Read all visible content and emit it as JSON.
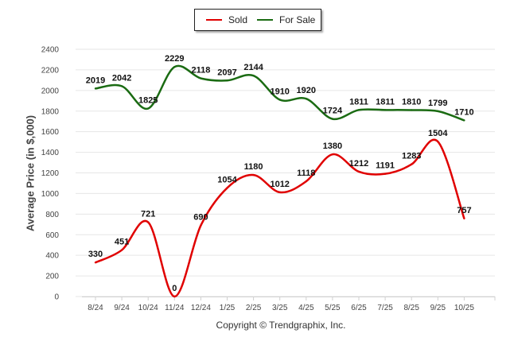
{
  "chart_data": {
    "type": "line",
    "title": "",
    "xlabel": "",
    "ylabel": "Average Price (in $,000)",
    "ylim": [
      0,
      2400
    ],
    "yticks": [
      0,
      200,
      400,
      600,
      800,
      1000,
      1200,
      1400,
      1600,
      1800,
      2000,
      2200,
      2400
    ],
    "grid": true,
    "legend_position": "top-center",
    "categories": [
      "8/24",
      "9/24",
      "10/24",
      "11/24",
      "12/24",
      "1/25",
      "2/25",
      "3/25",
      "4/25",
      "5/25",
      "6/25",
      "7/25",
      "8/25",
      "9/25",
      "10/25"
    ],
    "series": [
      {
        "name": "Sold",
        "color": "#e00000",
        "values": [
          330,
          451,
          721,
          0,
          690,
          1054,
          1180,
          1012,
          1118,
          1380,
          1212,
          1191,
          1283,
          1504,
          757
        ]
      },
      {
        "name": "For Sale",
        "color": "#1a6b12",
        "values": [
          2019,
          2042,
          1825,
          2229,
          2118,
          2097,
          2144,
          1910,
          1920,
          1724,
          1811,
          1811,
          1810,
          1799,
          1710
        ]
      }
    ],
    "footer": "Copyright © Trendgraphix, Inc."
  }
}
